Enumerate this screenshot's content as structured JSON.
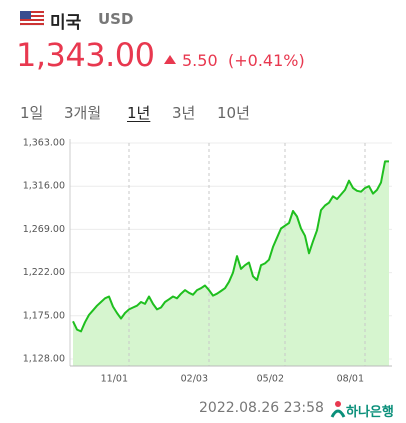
{
  "header": {
    "country": "미국",
    "currency": "USD",
    "price": "1,343.00",
    "change": "5.50",
    "change_pct": "(+0.41%)"
  },
  "tabs": [
    "1일",
    "3개월",
    "1년",
    "3년",
    "10년"
  ],
  "selected_tab": 2,
  "chart_data": {
    "type": "area",
    "categories": [
      null,
      null,
      null,
      null,
      null,
      null,
      null,
      null,
      null,
      null,
      null,
      null,
      null,
      null,
      "11/01",
      null,
      null,
      null,
      null,
      null,
      null,
      null,
      null,
      null,
      null,
      null,
      null,
      null,
      null,
      null,
      null,
      null,
      null,
      null,
      "02/03",
      null,
      null,
      null,
      null,
      null,
      null,
      null,
      null,
      null,
      null,
      null,
      null,
      null,
      null,
      null,
      null,
      null,
      null,
      "05/02",
      null,
      null,
      null,
      null,
      null,
      null,
      null,
      null,
      null,
      null,
      null,
      null,
      null,
      null,
      null,
      null,
      null,
      null,
      null,
      "08/01",
      null,
      null,
      null,
      null,
      null,
      null
    ],
    "series": [
      {
        "color": "#1fbf1f",
        "fill": "#d6f5cf",
        "values": [
          1169,
          1160,
          1158,
          1168,
          1176,
          1181,
          1186,
          1190,
          1194,
          1196,
          1185,
          1178,
          1172,
          1178,
          1182,
          1184,
          1186,
          1190,
          1188,
          1196,
          1188,
          1182,
          1184,
          1190,
          1193,
          1196,
          1194,
          1199,
          1203,
          1200,
          1198,
          1203,
          1205,
          1208,
          1203,
          1197,
          1199,
          1202,
          1205,
          1212,
          1222,
          1240,
          1226,
          1230,
          1233,
          1218,
          1214,
          1230,
          1232,
          1236,
          1250,
          1260,
          1270,
          1273,
          1276,
          1289,
          1283,
          1270,
          1262,
          1243,
          1256,
          1268,
          1290,
          1295,
          1298,
          1305,
          1302,
          1307,
          1312,
          1322,
          1314,
          1311,
          1310,
          1314,
          1316,
          1308,
          1312,
          1320,
          1343,
          1343
        ]
      }
    ],
    "ylim": [
      1128,
      1363
    ],
    "yticks": [
      {
        "value": 1128,
        "label": "1,128.00"
      },
      {
        "value": 1175,
        "label": "1,175.00"
      },
      {
        "value": 1222,
        "label": "1,222.00"
      },
      {
        "value": 1269,
        "label": "1,269.00"
      },
      {
        "value": 1316,
        "label": "1,316.00"
      },
      {
        "value": 1363,
        "label": "1,363.00"
      }
    ],
    "grid": true
  },
  "footer": {
    "timestamp": "2022.08.26 23:58",
    "bank": "하나은행"
  }
}
